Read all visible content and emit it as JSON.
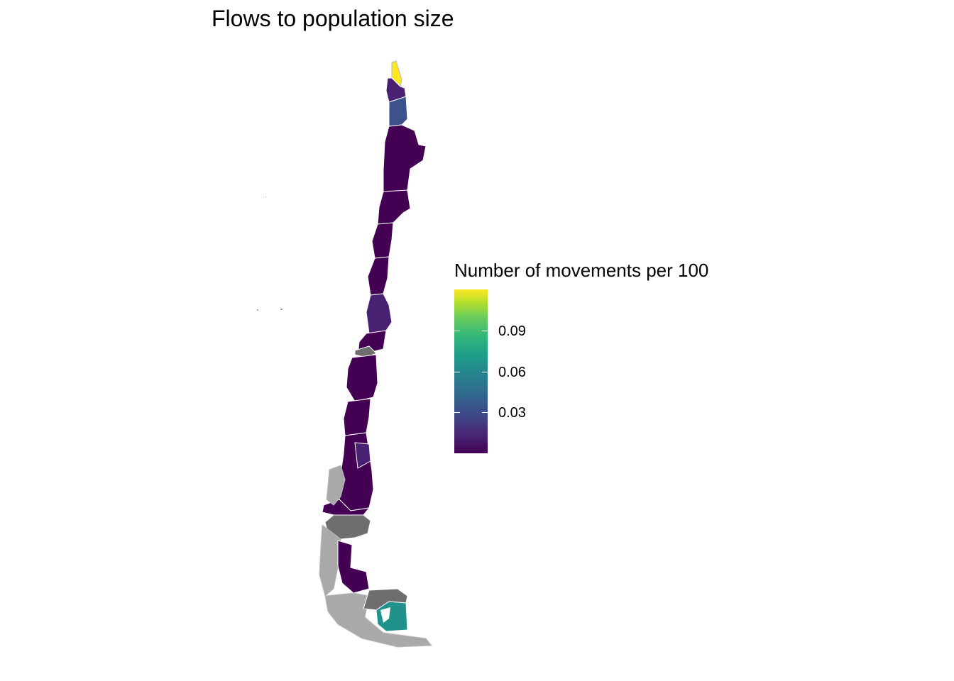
{
  "title": "Flows to population size",
  "legend": {
    "title": "Number of movements per 100",
    "ticks": [
      "0.09",
      "0.06",
      "0.03"
    ],
    "tick_values": [
      0.09,
      0.06,
      0.03
    ],
    "range": [
      0.0,
      0.12
    ],
    "palette": "viridis"
  },
  "map": {
    "colors": {
      "max_region": "#fde725",
      "high_region": "#21918c",
      "low_region": "#440154",
      "low_region_alt": "#482173",
      "mid_low_region": "#3b528b",
      "no_data": "#6e6e6e",
      "islands": "#a9a9a9",
      "border": "#ffffff"
    }
  }
}
